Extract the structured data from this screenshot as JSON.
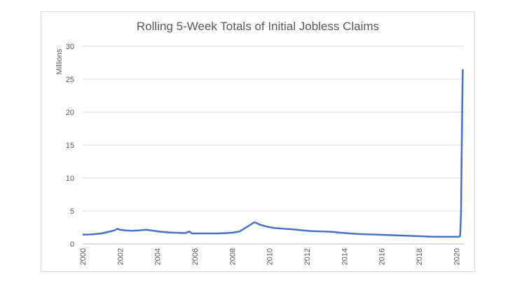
{
  "chart_data": {
    "type": "line",
    "title": "Rolling 5-Week Totals of Initial Jobless Claims",
    "ylabel": "Millions",
    "xlabel": "",
    "ylim": [
      0,
      30
    ],
    "yticks": [
      "0",
      "5",
      "10",
      "15",
      "20",
      "25",
      "30"
    ],
    "xticks": [
      "2000",
      "2002",
      "2004",
      "2006",
      "2008",
      "2010",
      "2012",
      "2014",
      "2016",
      "2018",
      "2020"
    ],
    "xlim": [
      2000,
      2020.4
    ],
    "grid": "horizontal",
    "legend": "none",
    "series": [
      {
        "color": "#4472c4",
        "points": [
          [
            2000.0,
            1.4
          ],
          [
            2000.5,
            1.45
          ],
          [
            2001.0,
            1.6
          ],
          [
            2001.4,
            1.85
          ],
          [
            2001.7,
            2.05
          ],
          [
            2001.85,
            2.3
          ],
          [
            2002.0,
            2.15
          ],
          [
            2002.3,
            2.05
          ],
          [
            2002.6,
            2.0
          ],
          [
            2003.0,
            2.05
          ],
          [
            2003.4,
            2.15
          ],
          [
            2003.8,
            2.0
          ],
          [
            2004.2,
            1.85
          ],
          [
            2004.6,
            1.75
          ],
          [
            2005.0,
            1.7
          ],
          [
            2005.5,
            1.65
          ],
          [
            2005.7,
            1.9
          ],
          [
            2005.85,
            1.6
          ],
          [
            2006.2,
            1.6
          ],
          [
            2006.7,
            1.6
          ],
          [
            2007.2,
            1.6
          ],
          [
            2007.7,
            1.65
          ],
          [
            2008.0,
            1.7
          ],
          [
            2008.4,
            1.9
          ],
          [
            2008.8,
            2.6
          ],
          [
            2009.2,
            3.3
          ],
          [
            2009.5,
            2.9
          ],
          [
            2009.9,
            2.6
          ],
          [
            2010.3,
            2.4
          ],
          [
            2010.8,
            2.3
          ],
          [
            2011.3,
            2.2
          ],
          [
            2011.8,
            2.05
          ],
          [
            2012.3,
            1.95
          ],
          [
            2012.8,
            1.9
          ],
          [
            2013.3,
            1.85
          ],
          [
            2013.8,
            1.7
          ],
          [
            2014.3,
            1.6
          ],
          [
            2014.8,
            1.5
          ],
          [
            2015.3,
            1.45
          ],
          [
            2015.8,
            1.4
          ],
          [
            2016.3,
            1.35
          ],
          [
            2016.8,
            1.3
          ],
          [
            2017.3,
            1.25
          ],
          [
            2017.8,
            1.2
          ],
          [
            2018.3,
            1.15
          ],
          [
            2018.8,
            1.1
          ],
          [
            2019.3,
            1.1
          ],
          [
            2019.8,
            1.1
          ],
          [
            2020.15,
            1.1
          ],
          [
            2020.2,
            1.2
          ],
          [
            2020.25,
            5.0
          ],
          [
            2020.28,
            13.0
          ],
          [
            2020.31,
            20.0
          ],
          [
            2020.34,
            26.5
          ]
        ]
      }
    ]
  }
}
